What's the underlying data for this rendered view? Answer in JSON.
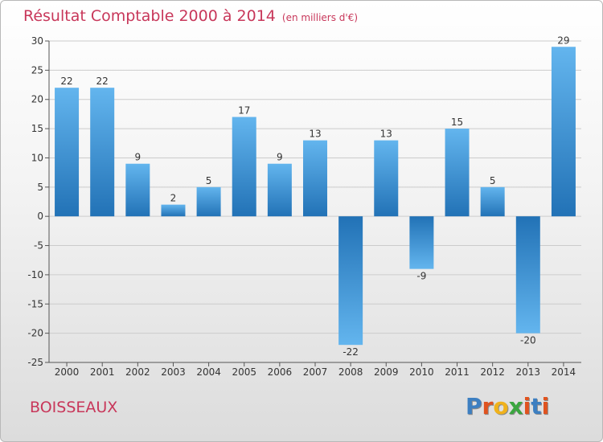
{
  "header": {
    "title": "Résultat Comptable 2000 à 2014",
    "subtitle": "(en milliers d'€)"
  },
  "footer": {
    "town": "BOISSEAUX",
    "logo": "Proxiti"
  },
  "colors": {
    "title": "#c8375a",
    "bar_top": "#63b5ee",
    "bar_bottom": "#2272b6",
    "grid": "#cccccc",
    "logo_letters": [
      "#3d7fc1",
      "#e0531f",
      "#f0b21b",
      "#3aa63f",
      "#e0531f",
      "#3d7fc1",
      "#e0531f"
    ]
  },
  "chart_data": {
    "type": "bar",
    "title": "Résultat Comptable 2000 à 2014",
    "subtitle": "(en milliers d'€)",
    "xlabel": "",
    "ylabel": "",
    "categories": [
      "2000",
      "2001",
      "2002",
      "2003",
      "2004",
      "2005",
      "2006",
      "2007",
      "2008",
      "2009",
      "2010",
      "2011",
      "2012",
      "2013",
      "2014"
    ],
    "values": [
      22,
      22,
      9,
      2,
      5,
      17,
      9,
      13,
      -22,
      13,
      -9,
      15,
      5,
      -20,
      29
    ],
    "ylim": [
      -25,
      30
    ],
    "yticks": [
      30,
      25,
      20,
      15,
      10,
      5,
      0,
      -5,
      -10,
      -15,
      -20,
      -25
    ],
    "grid": true,
    "legend": "none"
  }
}
